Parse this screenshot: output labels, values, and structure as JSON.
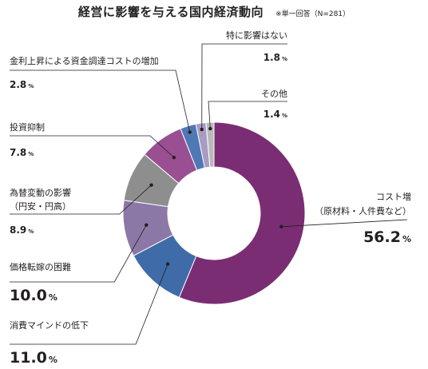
{
  "chart_data": {
    "type": "pie",
    "title": "経営に影響を与える国内経済動向",
    "note": "※単一回答（N=281）",
    "slices": [
      {
        "label": "コスト増",
        "sublabel": "（原材料・人件費など）",
        "value": 56.2,
        "display": "56.2",
        "color": "#7a2d73"
      },
      {
        "label": "消費マインドの低下",
        "value": 11.0,
        "display": "11.0",
        "color": "#3f6ca8"
      },
      {
        "label": "価格転嫁の困難",
        "value": 10.0,
        "display": "10.0",
        "color": "#8c78a6"
      },
      {
        "label": "為替変動の影響",
        "sublabel": "（円安・円高）",
        "value": 8.9,
        "display": "8.9",
        "color": "#8e8e8e"
      },
      {
        "label": "投資抑制",
        "value": 7.8,
        "display": "7.8",
        "color": "#9a4f92"
      },
      {
        "label": "金利上昇による資金調達コストの増加",
        "value": 2.8,
        "display": "2.8",
        "color": "#4f78b6"
      },
      {
        "label": "特に影響はない",
        "value": 1.8,
        "display": "1.8",
        "color": "#a99cc2"
      },
      {
        "label": "その他",
        "value": 1.4,
        "display": "1.4",
        "color": "#b9b9b9"
      }
    ],
    "unit": "%"
  }
}
